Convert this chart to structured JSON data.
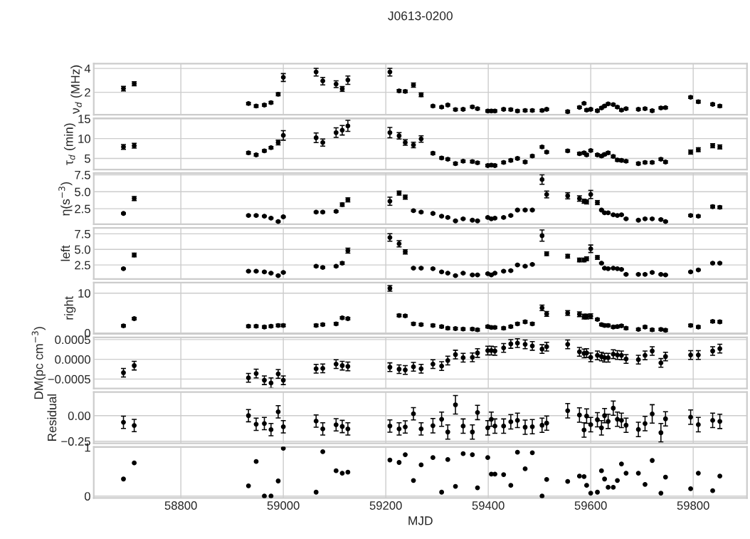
{
  "chart_data": [
    {
      "type": "scatter",
      "title": "J0613-0200",
      "ylabel": "ν$_{d}$ (MHz)",
      "log": "y",
      "ylim": [
        1.04,
        4.6
      ],
      "yticks": [
        2,
        4
      ],
      "xlim": [
        58630,
        59905
      ],
      "xticks": [
        58800,
        59000,
        59200,
        59400,
        59600,
        59800
      ],
      "tick_labels": "y",
      "grid": true,
      "marker": "circle",
      "color": "#000000",
      "x": [
        58688,
        58709,
        58932,
        58947,
        58963,
        58976,
        58990,
        59000,
        59064,
        59077,
        59103,
        59115,
        59126,
        59208,
        59226,
        59238,
        59254,
        59269,
        59292,
        59309,
        59321,
        59336,
        59351,
        59369,
        59379,
        59399,
        59406,
        59413,
        59430,
        59444,
        59457,
        59472,
        59486,
        59505,
        59514,
        59555,
        59578,
        59587,
        59592,
        59600,
        59613,
        59621,
        59627,
        59634,
        59644,
        59652,
        59660,
        59669,
        59693,
        59706,
        59720,
        59737,
        59746,
        59795,
        59810,
        59838,
        59852
      ],
      "values": [
        2.23,
        2.57,
        1.44,
        1.34,
        1.38,
        1.48,
        1.89,
        3.09,
        3.61,
        2.78,
        2.54,
        2.21,
        2.86,
        3.61,
        2.08,
        2.05,
        2.47,
        1.86,
        1.34,
        1.3,
        1.38,
        1.21,
        1.22,
        1.31,
        1.24,
        1.16,
        1.16,
        1.16,
        1.22,
        1.21,
        1.16,
        1.18,
        1.18,
        1.18,
        1.22,
        1.14,
        1.29,
        1.45,
        1.19,
        1.22,
        1.17,
        1.27,
        1.34,
        1.43,
        1.4,
        1.3,
        1.19,
        1.24,
        1.22,
        1.24,
        1.17,
        1.27,
        1.28,
        1.73,
        1.52,
        1.41,
        1.34
      ],
      "errors": [
        0.15,
        0.15,
        0.05,
        0.05,
        0.05,
        0.05,
        0.08,
        0.35,
        0.4,
        0.3,
        0.25,
        0.15,
        0.35,
        0.4,
        0.08,
        0.08,
        0.15,
        0.1,
        0.04,
        0.04,
        0.04,
        0.04,
        0.04,
        0.04,
        0.04,
        0.04,
        0.04,
        0.04,
        0.04,
        0.04,
        0.04,
        0.04,
        0.04,
        0.04,
        0.04,
        0.04,
        0.04,
        0.04,
        0.04,
        0.04,
        0.04,
        0.04,
        0.04,
        0.04,
        0.04,
        0.04,
        0.04,
        0.04,
        0.04,
        0.04,
        0.04,
        0.04,
        0.04,
        0.06,
        0.06,
        0.05,
        0.05
      ]
    },
    {
      "type": "scatter",
      "ylabel": "τ$_{d}$ (min)",
      "ylim": [
        2.2,
        15.1
      ],
      "yticks": [
        5,
        10,
        15
      ],
      "xlim": [
        58630,
        59905
      ],
      "xticks": [
        58800,
        59000,
        59200,
        59400,
        59600,
        59800
      ],
      "tick_labels": "y",
      "grid": true,
      "marker": "circle",
      "color": "#000000",
      "x": [
        58688,
        58709,
        58932,
        58947,
        58963,
        58976,
        58990,
        59000,
        59064,
        59077,
        59103,
        59115,
        59126,
        59208,
        59226,
        59238,
        59254,
        59269,
        59292,
        59309,
        59321,
        59336,
        59351,
        59369,
        59379,
        59399,
        59406,
        59413,
        59430,
        59444,
        59457,
        59472,
        59486,
        59505,
        59514,
        59555,
        59578,
        59587,
        59592,
        59600,
        59613,
        59621,
        59627,
        59634,
        59644,
        59652,
        59660,
        59669,
        59693,
        59706,
        59720,
        59737,
        59746,
        59795,
        59810,
        59838,
        59852
      ],
      "values": [
        7.9,
        8.2,
        6.4,
        5.9,
        6.9,
        7.7,
        9.0,
        10.8,
        10.2,
        9.0,
        11.5,
        12.1,
        13.2,
        11.5,
        10.7,
        9.0,
        8.4,
        9.9,
        6.3,
        5.1,
        4.8,
        3.7,
        4.3,
        4.2,
        3.9,
        3.2,
        3.3,
        3.2,
        4.0,
        4.5,
        5.0,
        4.1,
        5.6,
        7.9,
        6.6,
        6.9,
        6.2,
        6.4,
        5.9,
        7.0,
        5.9,
        5.6,
        6.0,
        6.4,
        5.5,
        4.6,
        4.5,
        4.3,
        3.7,
        4.0,
        4.0,
        4.8,
        4.1,
        6.6,
        7.2,
        8.2,
        7.9
      ],
      "errors": [
        0.6,
        0.6,
        0.3,
        0.3,
        0.3,
        0.3,
        0.6,
        1.2,
        1.2,
        0.9,
        1.2,
        1.2,
        1.4,
        1.3,
        0.8,
        0.7,
        0.7,
        0.8,
        0.3,
        0.3,
        0.3,
        0.3,
        0.3,
        0.3,
        0.3,
        0.3,
        0.3,
        0.3,
        0.3,
        0.3,
        0.3,
        0.3,
        0.3,
        0.3,
        0.3,
        0.3,
        0.3,
        0.3,
        0.3,
        0.3,
        0.3,
        0.3,
        0.3,
        0.3,
        0.3,
        0.3,
        0.3,
        0.3,
        0.3,
        0.3,
        0.3,
        0.3,
        0.3,
        0.5,
        0.5,
        0.5,
        0.5
      ]
    },
    {
      "type": "scatter",
      "ylabel": "η(s$^{−3}$)",
      "ylim": [
        0.2,
        7.75
      ],
      "yticks": [
        {
          "value": 2.5,
          "label": "2.5"
        },
        {
          "value": 5,
          "label": "5.0"
        },
        {
          "value": 7.5,
          "label": "7.5"
        }
      ],
      "xlim": [
        58630,
        59905
      ],
      "xticks": [
        58800,
        59000,
        59200,
        59400,
        59600,
        59800
      ],
      "tick_labels": "y",
      "grid": true,
      "marker": "circle",
      "color": "#000000",
      "x": [
        58688,
        58709,
        58932,
        58947,
        58963,
        58976,
        58990,
        59000,
        59064,
        59077,
        59103,
        59115,
        59126,
        59208,
        59226,
        59238,
        59254,
        59269,
        59292,
        59309,
        59321,
        59336,
        59351,
        59369,
        59379,
        59399,
        59406,
        59413,
        59430,
        59444,
        59457,
        59472,
        59486,
        59505,
        59514,
        59555,
        59578,
        59587,
        59592,
        59600,
        59613,
        59621,
        59627,
        59634,
        59644,
        59652,
        59660,
        59669,
        59693,
        59706,
        59720,
        59737,
        59746,
        59795,
        59810,
        59838,
        59852
      ],
      "values": [
        1.8,
        4.0,
        1.5,
        1.5,
        1.4,
        1.1,
        0.6,
        1.3,
        2.0,
        2.0,
        2.1,
        3.1,
        3.8,
        3.6,
        4.8,
        4.2,
        2.2,
        2.0,
        1.8,
        1.4,
        1.2,
        0.7,
        1.0,
        0.8,
        0.7,
        1.2,
        1.0,
        1.1,
        1.2,
        1.5,
        2.3,
        2.3,
        2.3,
        6.8,
        4.6,
        4.4,
        4.0,
        3.6,
        3.5,
        4.6,
        3.4,
        2.3,
        1.9,
        1.9,
        1.6,
        1.5,
        1.6,
        1.0,
        0.8,
        1.0,
        1.0,
        0.9,
        0.6,
        1.5,
        1.4,
        2.8,
        2.7
      ],
      "errors": [
        0.1,
        0.3,
        0.1,
        0.1,
        0.1,
        0.1,
        0.1,
        0.1,
        0.12,
        0.12,
        0.12,
        0.25,
        0.3,
        0.6,
        0.3,
        0.3,
        0.12,
        0.12,
        0.1,
        0.1,
        0.1,
        0.1,
        0.1,
        0.1,
        0.1,
        0.1,
        0.1,
        0.1,
        0.1,
        0.1,
        0.1,
        0.1,
        0.1,
        0.7,
        0.5,
        0.45,
        0.4,
        0.3,
        0.3,
        0.6,
        0.3,
        0.1,
        0.1,
        0.1,
        0.1,
        0.1,
        0.1,
        0.1,
        0.1,
        0.1,
        0.1,
        0.1,
        0.1,
        0.15,
        0.15,
        0.2,
        0.2
      ]
    },
    {
      "type": "scatter",
      "ylabel": "left",
      "ylim": [
        0.25,
        8.45
      ],
      "yticks": [
        {
          "value": 2.5,
          "label": "2.5"
        },
        {
          "value": 5,
          "label": "5.0"
        },
        {
          "value": 7.5,
          "label": "7.5"
        }
      ],
      "xlim": [
        58630,
        59905
      ],
      "xticks": [
        58800,
        59000,
        59200,
        59400,
        59600,
        59800
      ],
      "tick_labels": "y",
      "grid": true,
      "marker": "circle",
      "color": "#000000",
      "x": [
        58688,
        58709,
        58932,
        58947,
        58963,
        58976,
        58990,
        59000,
        59064,
        59077,
        59103,
        59115,
        59126,
        59208,
        59226,
        59238,
        59254,
        59269,
        59292,
        59309,
        59321,
        59336,
        59351,
        59369,
        59379,
        59399,
        59406,
        59413,
        59430,
        59444,
        59457,
        59472,
        59486,
        59505,
        59514,
        59555,
        59578,
        59587,
        59592,
        59600,
        59613,
        59621,
        59627,
        59634,
        59644,
        59652,
        59660,
        59669,
        59693,
        59706,
        59720,
        59737,
        59746,
        59795,
        59810,
        59838,
        59852
      ],
      "values": [
        1.9,
        4.1,
        1.5,
        1.5,
        1.4,
        1.2,
        0.8,
        1.3,
        2.3,
        2.1,
        2.3,
        2.8,
        4.8,
        6.9,
        5.9,
        4.6,
        2.0,
        2.0,
        1.9,
        1.4,
        1.2,
        0.8,
        1.2,
        0.9,
        0.9,
        1.1,
        0.9,
        1.2,
        1.5,
        1.6,
        2.5,
        2.3,
        2.6,
        7.2,
        4.3,
        3.9,
        3.3,
        3.3,
        3.5,
        5.1,
        3.7,
        2.8,
        2.0,
        1.9,
        2.0,
        1.9,
        1.8,
        1.0,
        1.0,
        1.0,
        1.3,
        1.0,
        0.9,
        1.4,
        1.7,
        2.8,
        2.8
      ],
      "errors": [
        0.1,
        0.3,
        0.1,
        0.1,
        0.1,
        0.1,
        0.1,
        0.1,
        0.12,
        0.12,
        0.12,
        0.2,
        0.4,
        0.6,
        0.5,
        0.35,
        0.12,
        0.12,
        0.1,
        0.1,
        0.1,
        0.1,
        0.1,
        0.1,
        0.1,
        0.1,
        0.1,
        0.1,
        0.1,
        0.1,
        0.1,
        0.1,
        0.1,
        0.9,
        0.3,
        0.3,
        0.3,
        0.3,
        0.3,
        0.6,
        0.3,
        0.1,
        0.1,
        0.1,
        0.1,
        0.1,
        0.1,
        0.1,
        0.1,
        0.1,
        0.1,
        0.1,
        0.1,
        0.12,
        0.12,
        0.12,
        0.12
      ]
    },
    {
      "type": "scatter",
      "ylabel": "right",
      "ylim": [
        -0.2,
        12.65
      ],
      "yticks": [
        0,
        10
      ],
      "xlim": [
        58630,
        59905
      ],
      "xticks": [
        58800,
        59000,
        59200,
        59400,
        59600,
        59800
      ],
      "tick_labels": "y",
      "grid": true,
      "marker": "circle",
      "color": "#000000",
      "x": [
        58688,
        58709,
        58932,
        58947,
        58963,
        58976,
        58990,
        59000,
        59064,
        59077,
        59103,
        59115,
        59126,
        59208,
        59226,
        59238,
        59254,
        59269,
        59292,
        59309,
        59321,
        59336,
        59351,
        59369,
        59379,
        59399,
        59406,
        59413,
        59430,
        59444,
        59457,
        59472,
        59486,
        59505,
        59514,
        59555,
        59578,
        59587,
        59592,
        59600,
        59613,
        59621,
        59627,
        59634,
        59644,
        59652,
        59660,
        59669,
        59693,
        59706,
        59720,
        59737,
        59746,
        59795,
        59810,
        59838,
        59852
      ],
      "values": [
        1.8,
        3.6,
        1.7,
        1.7,
        1.5,
        1.7,
        1.9,
        1.9,
        1.9,
        2.1,
        2.3,
        3.8,
        3.6,
        11.2,
        4.4,
        4.3,
        2.3,
        2.1,
        1.9,
        1.6,
        1.2,
        1.1,
        1.0,
        1.0,
        0.8,
        1.6,
        1.4,
        1.4,
        1.2,
        1.6,
        2.3,
        2.8,
        2.3,
        6.3,
        4.8,
        5.0,
        4.7,
        4.1,
        4.1,
        4.2,
        3.4,
        2.1,
        1.9,
        1.9,
        1.5,
        1.6,
        1.8,
        1.2,
        0.9,
        1.5,
        0.8,
        0.9,
        0.7,
        1.9,
        1.5,
        2.9,
        2.8
      ],
      "errors": [
        0.3,
        0.3,
        0.3,
        0.3,
        0.3,
        0.3,
        0.3,
        0.3,
        0.3,
        0.3,
        0.3,
        0.3,
        0.3,
        0.7,
        0.3,
        0.3,
        0.3,
        0.3,
        0.3,
        0.3,
        0.3,
        0.3,
        0.3,
        0.3,
        0.3,
        0.3,
        0.3,
        0.3,
        0.3,
        0.3,
        0.3,
        0.3,
        0.3,
        0.7,
        0.6,
        0.6,
        0.6,
        0.6,
        0.6,
        0.6,
        0.3,
        0.3,
        0.3,
        0.3,
        0.3,
        0.3,
        0.3,
        0.3,
        0.3,
        0.3,
        0.3,
        0.3,
        0.3,
        0.3,
        0.3,
        0.3,
        0.3
      ]
    },
    {
      "type": "scatter",
      "ylabel": "DM(pc cm$^{−3}$)",
      "ylim": [
        -0.00074,
        0.000556
      ],
      "yticks": [
        {
          "value": -0.0005,
          "label": "−0.0005"
        },
        {
          "value": 0,
          "label": "0.0000"
        },
        {
          "value": 0.0005,
          "label": "0.0005"
        }
      ],
      "xlim": [
        58630,
        59905
      ],
      "xticks": [
        58800,
        59000,
        59200,
        59400,
        59600,
        59800
      ],
      "tick_labels": "y",
      "grid": true,
      "marker": "circle",
      "color": "#000000",
      "x": [
        58688,
        58709,
        58932,
        58947,
        58963,
        58976,
        58990,
        59000,
        59064,
        59077,
        59103,
        59115,
        59126,
        59208,
        59226,
        59238,
        59254,
        59269,
        59292,
        59309,
        59321,
        59336,
        59351,
        59369,
        59379,
        59399,
        59406,
        59413,
        59430,
        59444,
        59457,
        59472,
        59486,
        59505,
        59514,
        59555,
        59578,
        59587,
        59592,
        59600,
        59613,
        59621,
        59627,
        59634,
        59644,
        59652,
        59660,
        59669,
        59693,
        59706,
        59720,
        59737,
        59746,
        59795,
        59810,
        59838,
        59852
      ],
      "values": [
        -0.00034,
        -0.00016,
        -0.00047,
        -0.00036,
        -0.00053,
        -0.0006,
        -0.00037,
        -0.00053,
        -0.00024,
        -0.00023,
        -0.00012,
        -0.00016,
        -0.00018,
        -0.0002,
        -0.00025,
        -0.00027,
        -0.00019,
        -0.00024,
        -0.00012,
        -0.00017,
        -3e-05,
        0.00012,
        4e-05,
        5e-05,
        0.00016,
        0.00022,
        0.00022,
        0.00021,
        0.00029,
        0.00039,
        0.00041,
        0.00038,
        0.00034,
        0.00026,
        0.00032,
        0.00038,
        0.00019,
        0.00015,
        0.00016,
        5e-05,
        0.0001,
        7e-05,
        4e-05,
        4e-05,
        0.00013,
        0.00011,
        0.0001,
        1e-05,
        -1e-05,
        0.0001,
        0.00021,
        -9e-05,
        7e-05,
        0.00011,
        0.00011,
        0.00021,
        0.00027
      ],
      "errors": [
        0.00011,
        0.00011,
        0.00011,
        0.00011,
        0.00011,
        0.00013,
        0.00011,
        0.00011,
        0.00011,
        0.00011,
        0.00011,
        0.00011,
        0.00011,
        0.00011,
        0.00011,
        0.00011,
        0.00011,
        0.00011,
        0.00011,
        0.00011,
        0.00011,
        0.00011,
        0.00011,
        0.00011,
        0.00011,
        0.00011,
        0.00011,
        0.00011,
        0.00011,
        0.00011,
        0.00011,
        0.00011,
        0.00011,
        0.00011,
        0.00011,
        0.00011,
        0.00011,
        0.00011,
        0.00011,
        0.00011,
        0.00011,
        0.00011,
        0.00011,
        0.00011,
        0.00011,
        0.00011,
        0.00011,
        0.00011,
        0.00011,
        0.00011,
        0.00011,
        0.00011,
        0.00011,
        0.00011,
        0.00011,
        0.00011,
        0.00011
      ]
    },
    {
      "type": "scatter",
      "ylabel": "Residual",
      "ylim": [
        -0.27,
        0.23
      ],
      "yticks": [
        {
          "value": -0.25,
          "label": "−0.25"
        },
        {
          "value": 0,
          "label": "0.00"
        }
      ],
      "xlim": [
        58630,
        59905
      ],
      "xticks": [
        58800,
        59000,
        59200,
        59400,
        59600,
        59800
      ],
      "tick_labels": "y",
      "grid": true,
      "marker": "circle",
      "color": "#000000",
      "x": [
        58688,
        58709,
        58932,
        58947,
        58963,
        58976,
        58990,
        59000,
        59064,
        59077,
        59103,
        59115,
        59126,
        59208,
        59226,
        59238,
        59254,
        59269,
        59292,
        59309,
        59321,
        59336,
        59351,
        59369,
        59379,
        59399,
        59406,
        59413,
        59430,
        59444,
        59457,
        59472,
        59486,
        59505,
        59514,
        59555,
        59578,
        59587,
        59592,
        59600,
        59613,
        59621,
        59627,
        59634,
        59644,
        59652,
        59660,
        59669,
        59693,
        59706,
        59720,
        59737,
        59746,
        59795,
        59810,
        59838,
        59852
      ],
      "values": [
        -0.065,
        -0.096,
        0.0,
        -0.084,
        -0.077,
        -0.137,
        0.038,
        -0.108,
        -0.053,
        -0.13,
        -0.089,
        -0.106,
        -0.13,
        -0.101,
        -0.13,
        -0.11,
        0.018,
        -0.13,
        -0.098,
        -0.035,
        -0.16,
        0.106,
        -0.102,
        -0.16,
        0.031,
        -0.119,
        -0.035,
        -0.102,
        -0.102,
        -0.06,
        -0.046,
        -0.113,
        -0.108,
        -0.094,
        -0.073,
        0.048,
        0.006,
        -0.14,
        -0.004,
        -0.088,
        -0.04,
        -0.119,
        0.0,
        -0.056,
        0.073,
        -0.035,
        -0.046,
        -0.094,
        -0.135,
        -0.077,
        0.017,
        -0.167,
        -0.031,
        -0.015,
        -0.088,
        -0.046,
        -0.056
      ],
      "errors": [
        0.06,
        0.06,
        0.06,
        0.06,
        0.06,
        0.06,
        0.06,
        0.06,
        0.06,
        0.06,
        0.06,
        0.06,
        0.06,
        0.06,
        0.06,
        0.06,
        0.06,
        0.06,
        0.07,
        0.07,
        0.07,
        0.09,
        0.07,
        0.07,
        0.07,
        0.07,
        0.07,
        0.07,
        0.07,
        0.07,
        0.07,
        0.07,
        0.07,
        0.07,
        0.07,
        0.07,
        0.07,
        0.07,
        0.07,
        0.07,
        0.07,
        0.07,
        0.07,
        0.07,
        0.07,
        0.07,
        0.07,
        0.07,
        0.07,
        0.07,
        0.09,
        0.09,
        0.07,
        0.07,
        0.07,
        0.07,
        0.07
      ]
    },
    {
      "type": "scatter",
      "xlabel": "MJD",
      "ylim": [
        -0.04,
        1.01
      ],
      "yticks": [
        0,
        1
      ],
      "xlim": [
        58630,
        59905
      ],
      "xticks": [
        58800,
        59000,
        59200,
        59400,
        59600,
        59800
      ],
      "grid": true,
      "marker": "circle",
      "color": "#000000",
      "x": [
        58688,
        58709,
        58932,
        58947,
        58963,
        58976,
        58990,
        59000,
        59064,
        59077,
        59103,
        59115,
        59126,
        59208,
        59226,
        59238,
        59254,
        59269,
        59292,
        59309,
        59321,
        59336,
        59351,
        59369,
        59379,
        59399,
        59406,
        59413,
        59430,
        59444,
        59457,
        59472,
        59486,
        59505,
        59514,
        59555,
        59578,
        59587,
        59592,
        59600,
        59613,
        59621,
        59627,
        59634,
        59644,
        59652,
        59660,
        59669,
        59693,
        59706,
        59720,
        59737,
        59746,
        59795,
        59810,
        59838,
        59852
      ],
      "values": [
        0.35,
        0.68,
        0.21,
        0.71,
        0.0,
        0.0,
        0.31,
        0.98,
        0.08,
        0.91,
        0.52,
        0.47,
        0.49,
        0.74,
        0.69,
        0.85,
        0.32,
        0.64,
        0.79,
        0.08,
        0.75,
        0.2,
        0.87,
        0.85,
        0.17,
        0.79,
        0.45,
        0.45,
        0.44,
        0.22,
        0.9,
        0.56,
        0.89,
        0.0,
        0.34,
        0.3,
        0.41,
        0.4,
        0.22,
        0.06,
        0.08,
        0.52,
        0.35,
        0.18,
        0.18,
        0.32,
        0.66,
        0.47,
        0.47,
        0.24,
        0.73,
        0.06,
        0.39,
        0.15,
        0.47,
        0.11,
        0.41
      ]
    }
  ]
}
